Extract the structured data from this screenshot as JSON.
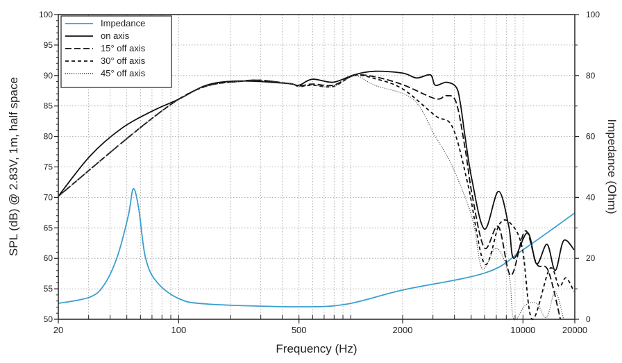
{
  "chart_data": {
    "type": "line",
    "title": "",
    "xlabel": "Frequency (Hz)",
    "ylabel": "SPL (dB) @ 2.83V, 1m, half space",
    "y2label": "Impedance (Ohm)",
    "xscale": "log",
    "xlim": [
      20,
      20000
    ],
    "ylim": [
      50,
      100
    ],
    "y2lim": [
      0,
      100
    ],
    "xticks": [
      20,
      100,
      500,
      2000,
      10000,
      20000
    ],
    "xtick_labels": [
      "20",
      "100",
      "500",
      "2000",
      "10000",
      "20000"
    ],
    "yticks": [
      50,
      55,
      60,
      65,
      70,
      75,
      80,
      85,
      90,
      95,
      100
    ],
    "ytick_labels": [
      "50",
      "55",
      "60",
      "65",
      "70",
      "75",
      "80",
      "85",
      "90",
      "95",
      "100"
    ],
    "y2ticks": [
      0,
      20,
      40,
      60,
      80,
      100
    ],
    "y2tick_labels": [
      "0",
      "20",
      "40",
      "60",
      "80",
      "100"
    ],
    "grid": true,
    "legend_placement": "top-left",
    "series": [
      {
        "name": "Impedance",
        "axis": "right",
        "color": "#3a9fcf",
        "style": "solid",
        "x": [
          20,
          30.6,
          37,
          44,
          51,
          54.5,
          58.6,
          64,
          74,
          100,
          148,
          500,
          950,
          2000,
          6090,
          10000,
          20000
        ],
        "y": [
          5.2,
          7.3,
          11.4,
          20.5,
          34,
          42.8,
          36.4,
          20.5,
          12.5,
          6.8,
          5,
          4.1,
          5,
          9.6,
          15.3,
          22.8,
          34.9
        ]
      },
      {
        "name": "on axis",
        "axis": "left",
        "color": "#111111",
        "style": "solid",
        "x": [
          20,
          30.6,
          46.5,
          70.7,
          100,
          148.6,
          236,
          430,
          500,
          598,
          790,
          1044,
          1376,
          2000,
          2410,
          2900,
          3096,
          3590,
          4090,
          4320,
          4610,
          5060,
          5980,
          7200,
          8280,
          8840,
          10640,
          12000,
          13800,
          15400,
          17230,
          19830
        ],
        "y": [
          70.2,
          76.8,
          81.3,
          84.2,
          86.1,
          88.5,
          89.1,
          88.7,
          88.4,
          89.4,
          88.9,
          90.1,
          90.7,
          90.4,
          89.6,
          90.1,
          88.4,
          88.9,
          88.1,
          85.6,
          80,
          72.8,
          64.8,
          71,
          65.2,
          60,
          64.2,
          59.1,
          62.3,
          58,
          62.9,
          61.4
        ]
      },
      {
        "name": "15° off axis",
        "axis": "left",
        "color": "#111111",
        "style": "longdash",
        "x": [
          20,
          100,
          236,
          430,
          500,
          598,
          790,
          1044,
          1376,
          2000,
          3096,
          3590,
          4090,
          4610,
          5060,
          5980,
          7200,
          8500,
          10300,
          12000,
          14000,
          16500
        ],
        "y": [
          70.2,
          86.1,
          89.1,
          88.7,
          88.3,
          88.6,
          88.4,
          90,
          89.8,
          88.5,
          86.2,
          86.7,
          85.6,
          78.1,
          70.5,
          61.7,
          65.2,
          57.2,
          64.5,
          59.1,
          58,
          49.7
        ]
      },
      {
        "name": "30° off axis",
        "axis": "left",
        "color": "#111111",
        "style": "dash",
        "x": [
          20,
          100,
          236,
          430,
          500,
          598,
          790,
          1044,
          1376,
          2000,
          3096,
          3900,
          4800,
          5980,
          7300,
          8500,
          9900,
          11300,
          14300,
          16200,
          17800,
          19830
        ],
        "y": [
          70.2,
          86.1,
          89.1,
          88.7,
          88.2,
          88.4,
          88.2,
          90,
          89.5,
          87.8,
          83.4,
          81.5,
          72,
          59.1,
          65.6,
          65.7,
          61.7,
          50,
          58.3,
          55.4,
          56.8,
          54.5
        ]
      },
      {
        "name": "45° off axis",
        "axis": "left",
        "color": "#555555",
        "style": "dotted",
        "x": [
          20,
          100,
          236,
          430,
          500,
          598,
          790,
          1044,
          1376,
          2300,
          3096,
          3900,
          5060,
          5800,
          7000,
          8300,
          8840,
          10300,
          12000,
          13700,
          15400,
          17230
        ],
        "y": [
          70.2,
          86.1,
          89.1,
          88.7,
          88.2,
          88.4,
          88.2,
          90,
          88.4,
          86.1,
          80,
          75,
          66.7,
          58.3,
          61.7,
          57.2,
          50,
          52.3,
          52.6,
          50.3,
          54.5,
          50
        ]
      }
    ]
  }
}
